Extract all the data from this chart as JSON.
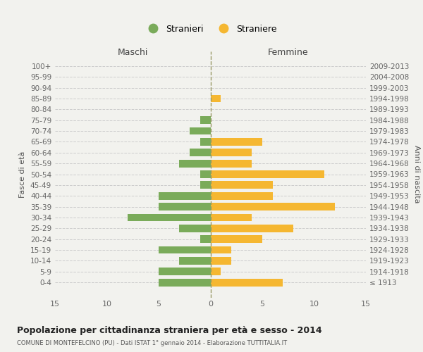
{
  "age_groups": [
    "100+",
    "95-99",
    "90-94",
    "85-89",
    "80-84",
    "75-79",
    "70-74",
    "65-69",
    "60-64",
    "55-59",
    "50-54",
    "45-49",
    "40-44",
    "35-39",
    "30-34",
    "25-29",
    "20-24",
    "15-19",
    "10-14",
    "5-9",
    "0-4"
  ],
  "birth_years": [
    "≤ 1913",
    "1914-1918",
    "1919-1923",
    "1924-1928",
    "1929-1933",
    "1934-1938",
    "1939-1943",
    "1944-1948",
    "1949-1953",
    "1954-1958",
    "1959-1963",
    "1964-1968",
    "1969-1973",
    "1974-1978",
    "1979-1983",
    "1984-1988",
    "1989-1993",
    "1994-1998",
    "1999-2003",
    "2004-2008",
    "2009-2013"
  ],
  "males": [
    0,
    0,
    0,
    0,
    0,
    1,
    2,
    1,
    2,
    3,
    1,
    1,
    5,
    5,
    8,
    3,
    1,
    5,
    3,
    5,
    5
  ],
  "females": [
    0,
    0,
    0,
    1,
    0,
    0,
    0,
    5,
    4,
    4,
    11,
    6,
    6,
    12,
    4,
    8,
    5,
    2,
    2,
    1,
    7
  ],
  "male_color": "#7aab5a",
  "female_color": "#f5b731",
  "grid_color": "#cccccc",
  "center_line_color": "#999966",
  "title": "Popolazione per cittadinanza straniera per età e sesso - 2014",
  "subtitle": "COMUNE DI MONTEFELCINO (PU) - Dati ISTAT 1° gennaio 2014 - Elaborazione TUTTITALIA.IT",
  "xlabel_left": "Maschi",
  "xlabel_right": "Femmine",
  "ylabel_left": "Fasce di età",
  "ylabel_right": "Anni di nascita",
  "legend_male": "Stranieri",
  "legend_female": "Straniere",
  "xlim": 15,
  "background_color": "#f2f2ee"
}
